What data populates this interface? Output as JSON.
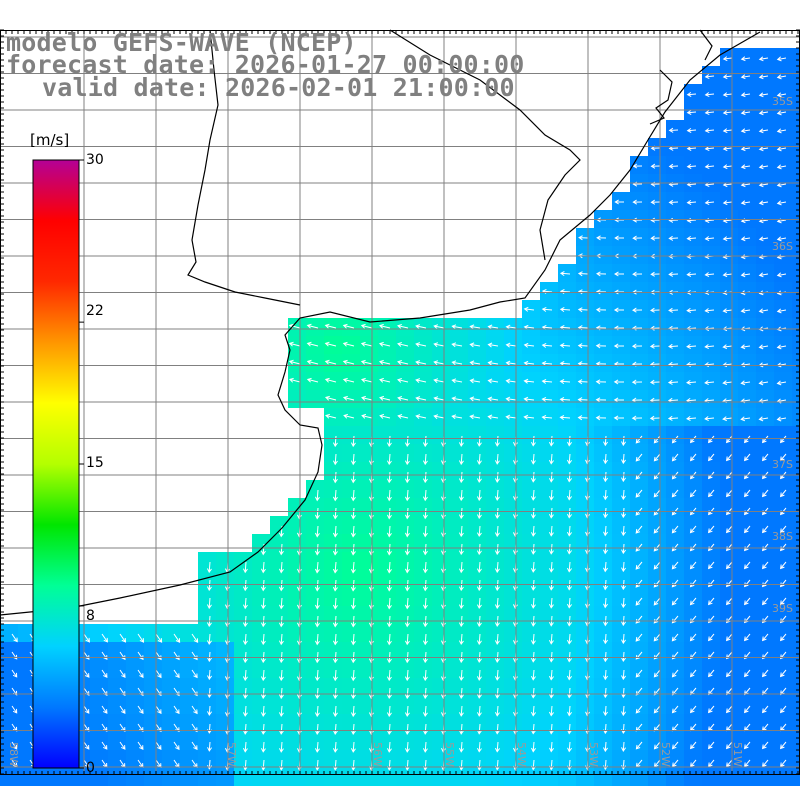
{
  "title": {
    "line1": "modelo GEFS-WAVE (NCEP)",
    "line2": "forecast date: 2026-01-27 00:00:00",
    "line3": "valid date: 2026-02-01 21:00:00"
  },
  "colorbar": {
    "unit": "[m/s]",
    "ticks": [
      {
        "value": 30,
        "label": "30"
      },
      {
        "value": 22,
        "label": "22"
      },
      {
        "value": 15,
        "label": "15"
      },
      {
        "value": 8,
        "label": "8"
      },
      {
        "value": 0,
        "label": "0"
      }
    ],
    "range": [
      0,
      30
    ],
    "stops": [
      "#0000ff",
      "#0078ff",
      "#00d2ff",
      "#00ff96",
      "#00e600",
      "#b4ff00",
      "#ffff00",
      "#ff9600",
      "#ff2800",
      "#ff0000",
      "#b40096"
    ]
  },
  "lat_labels": [
    "35S",
    "36S",
    "37S",
    "38S",
    "39S"
  ],
  "lon_labels": [
    "58W",
    "57W",
    "56W",
    "55W",
    "54W",
    "53W",
    "52W",
    "51W"
  ],
  "colors": {
    "land": "#ffffff",
    "coastline": "#000000",
    "grid": "#808080",
    "arrows": "#ffffff"
  }
}
